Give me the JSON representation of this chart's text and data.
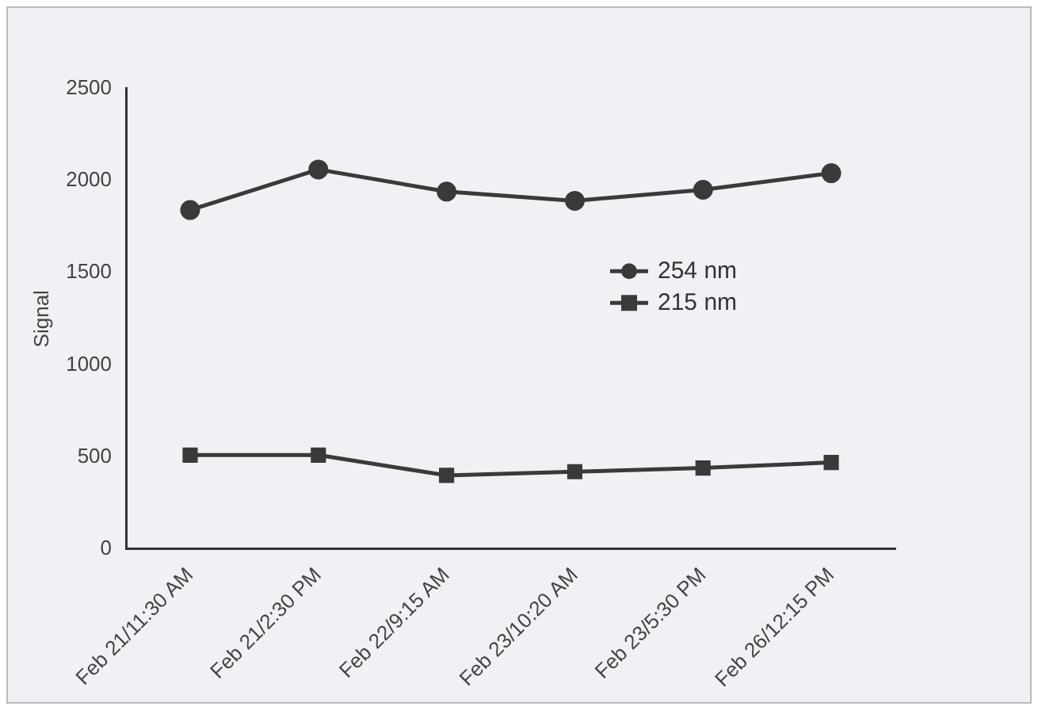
{
  "chart_data": {
    "type": "line",
    "ylabel": "Signal",
    "categories": [
      "Feb 21/11:30 AM",
      "Feb 21/2:30 PM",
      "Feb 22/9:15 AM",
      "Feb 23/10:20 AM",
      "Feb 23/5:30 PM",
      "Feb 26/12:15 PM"
    ],
    "series": [
      {
        "name": "254 nm",
        "color": "#3a3a3a",
        "marker": "circle",
        "values": [
          1840,
          2060,
          1940,
          1890,
          1950,
          2040
        ]
      },
      {
        "name": "215 nm",
        "color": "#3a3a3a",
        "marker": "square",
        "values": [
          510,
          510,
          400,
          420,
          440,
          470
        ]
      }
    ],
    "ylim": [
      0,
      2500
    ],
    "yticks": [
      0,
      500,
      1000,
      1500,
      2000,
      2500
    ],
    "grid": false,
    "legend": "right",
    "line_style": "solid"
  }
}
